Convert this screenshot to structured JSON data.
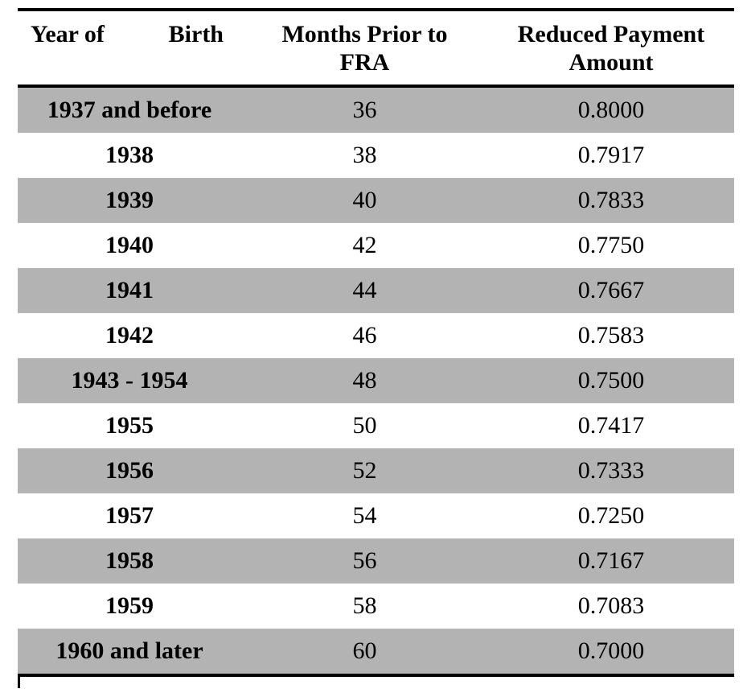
{
  "table": {
    "header": {
      "col1_left": "Year of",
      "col1_right": "Birth",
      "col2": "Months Prior to FRA",
      "col3": "Reduced Payment Amount"
    },
    "rows": [
      {
        "year": "1937 and before",
        "months": "36",
        "amount": "0.8000"
      },
      {
        "year": "1938",
        "months": "38",
        "amount": "0.7917"
      },
      {
        "year": "1939",
        "months": "40",
        "amount": "0.7833"
      },
      {
        "year": "1940",
        "months": "42",
        "amount": "0.7750"
      },
      {
        "year": "1941",
        "months": "44",
        "amount": "0.7667"
      },
      {
        "year": "1942",
        "months": "46",
        "amount": "0.7583"
      },
      {
        "year": "1943 - 1954",
        "months": "48",
        "amount": "0.7500"
      },
      {
        "year": "1955",
        "months": "50",
        "amount": "0.7417"
      },
      {
        "year": "1956",
        "months": "52",
        "amount": "0.7333"
      },
      {
        "year": "1957",
        "months": "54",
        "amount": "0.7250"
      },
      {
        "year": "1958",
        "months": "56",
        "amount": "0.7167"
      },
      {
        "year": "1959",
        "months": "58",
        "amount": "0.7083"
      },
      {
        "year": "1960 and later",
        "months": "60",
        "amount": "0.7000"
      }
    ]
  },
  "colors": {
    "row_shade": "#b3b3b3",
    "rule": "#000000",
    "text": "#000000"
  }
}
